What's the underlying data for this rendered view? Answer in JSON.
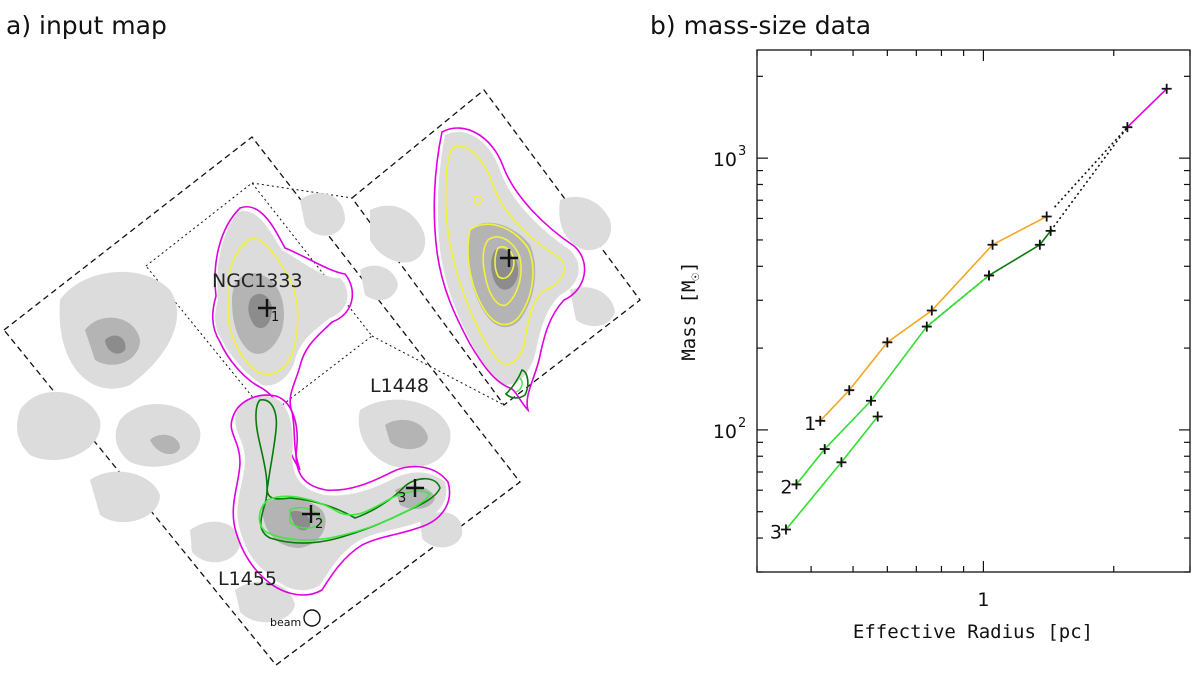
{
  "panel_a": {
    "title": "a) input map",
    "regions": {
      "ngc1333": "NGC1333",
      "l1448": "L1448",
      "l1455": "L1455"
    },
    "marker_labels": [
      "1",
      "2",
      "3"
    ],
    "beam_label": "beam",
    "colors": {
      "magenta_contour": "#e000e0",
      "yellow_contour": "#f2f23a",
      "dark_green_contour": "#0a7a0a",
      "light_green_contour": "#3ee83e",
      "grey_light": "#dcdcdc",
      "grey_mid": "#b4b4b4",
      "grey_dark": "#8c8c8c"
    }
  },
  "chart_data": {
    "type": "line",
    "title": "b) mass-size data",
    "xlabel": "Effective Radius [pc]",
    "ylabel": "Mass [M",
    "ylabel_symbol": "☉",
    "ylabel_close": "]",
    "xscale": "log",
    "yscale": "log",
    "xlim": [
      0.3,
      3.0
    ],
    "ylim": [
      30,
      2500
    ],
    "x_ticks": [
      {
        "value": 1,
        "label": "1"
      }
    ],
    "y_ticks": [
      {
        "value": 100,
        "base": "10",
        "exp": "2"
      },
      {
        "value": 1000,
        "base": "10",
        "exp": "3"
      }
    ],
    "series": [
      {
        "label": "1",
        "color": "#f5a623",
        "x": [
          0.42,
          0.49,
          0.6,
          0.76,
          1.05,
          1.4
        ],
        "y": [
          108,
          140,
          210,
          275,
          480,
          610
        ]
      },
      {
        "label": "2",
        "color": "#33dd33",
        "x": [
          0.37,
          0.43,
          0.55,
          0.74,
          1.03
        ],
        "y": [
          63,
          85,
          128,
          240,
          370
        ]
      },
      {
        "label": "3",
        "color": "#33dd33",
        "x": [
          0.35,
          0.47,
          0.57
        ],
        "y": [
          43,
          76,
          112
        ]
      },
      {
        "label": "",
        "color": "#0a7a0a",
        "x": [
          1.03,
          1.35,
          1.43
        ],
        "y": [
          370,
          480,
          540
        ]
      },
      {
        "label": "",
        "color": "#e000e0",
        "x": [
          2.15,
          2.65
        ],
        "y": [
          1300,
          1800
        ]
      }
    ],
    "dotted_links": [
      {
        "x": [
          1.46,
          2.15
        ],
        "y": [
          660,
          1300
        ]
      },
      {
        "x": [
          1.43,
          2.15
        ],
        "y": [
          540,
          1300
        ]
      },
      {
        "x": [
          0.74,
          1.03
        ],
        "y": [
          240,
          370
        ]
      }
    ]
  }
}
